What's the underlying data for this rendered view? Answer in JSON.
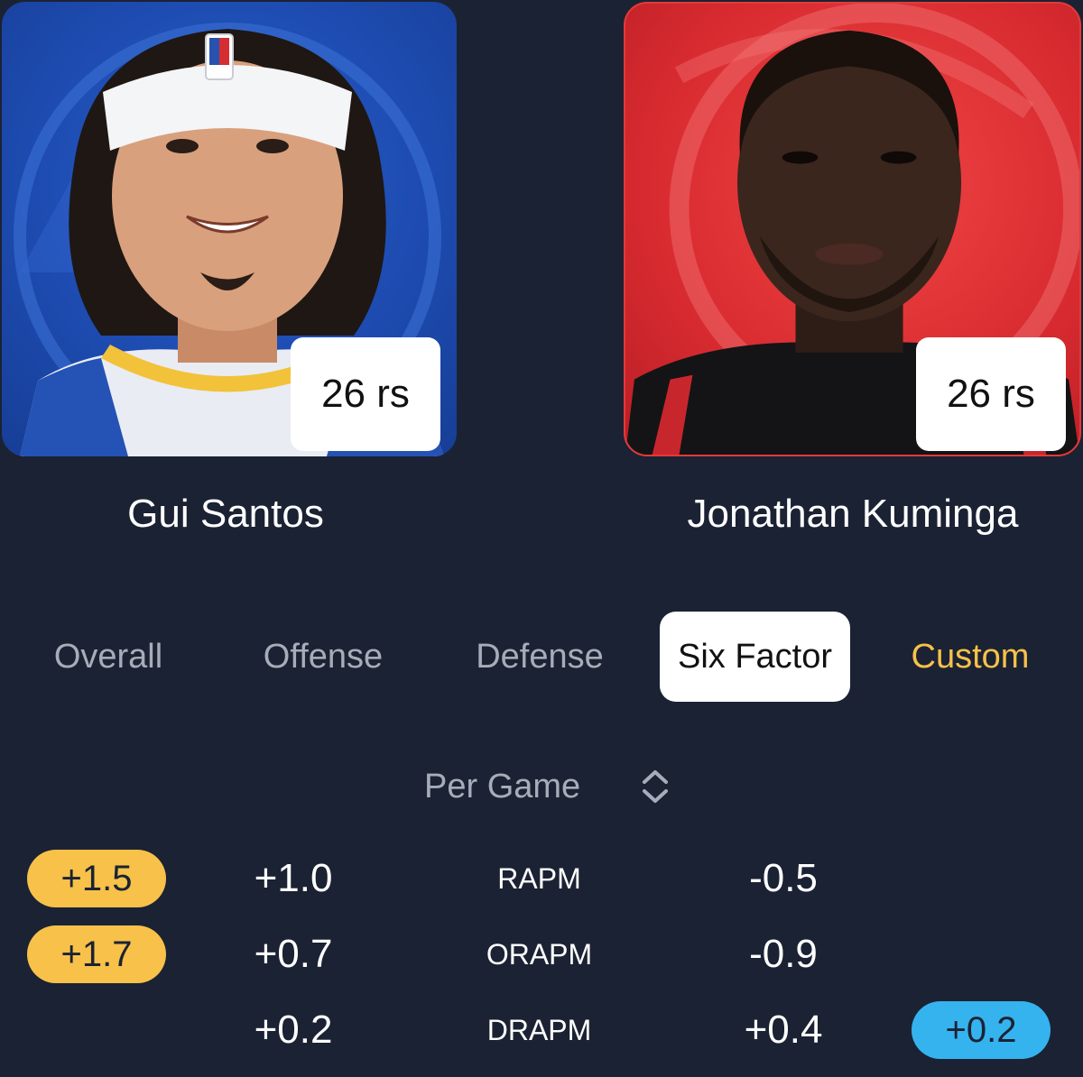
{
  "players": {
    "left": {
      "name": "Gui Santos",
      "badge": "26 rs",
      "card_color": "#1d4bb0"
    },
    "right": {
      "name": "Jonathan Kuminga",
      "badge": "26 rs",
      "card_color": "#d82b30"
    }
  },
  "tabs": [
    {
      "label": "Overall",
      "active": false
    },
    {
      "label": "Offense",
      "active": false
    },
    {
      "label": "Defense",
      "active": false
    },
    {
      "label": "Six Factor",
      "active": true
    },
    {
      "label": "Custom",
      "active": false,
      "color": "#f7c14a"
    }
  ],
  "mode": {
    "label": "Per Game",
    "icon": "sort-updown-icon"
  },
  "stats": [
    {
      "label": "RAPM",
      "left": "+1.0",
      "right": "-0.5",
      "left_pill": "+1.5",
      "right_pill": ""
    },
    {
      "label": "ORAPM",
      "left": "+0.7",
      "right": "-0.9",
      "left_pill": "+1.7",
      "right_pill": ""
    },
    {
      "label": "DRAPM",
      "left": "+0.2",
      "right": "+0.4",
      "left_pill": "",
      "right_pill": "+0.2"
    }
  ],
  "colors": {
    "background": "#1b2233",
    "pill_yellow": "#f7c14a",
    "pill_blue": "#35b3ef"
  }
}
